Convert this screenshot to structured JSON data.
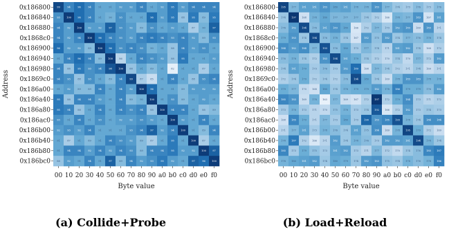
{
  "chart_data": [
    {
      "type": "heatmap",
      "caption": "(a) Collide+Probe",
      "xlabel": "Byte value",
      "ylabel": "Address",
      "x_tick_labels": [
        "00",
        "10",
        "20",
        "30",
        "40",
        "50",
        "60",
        "70",
        "80",
        "90",
        "a0",
        "b0",
        "c0",
        "d0",
        "e0",
        "f0"
      ],
      "y_tick_labels": [
        "0x186800",
        "0x186840",
        "0x186880",
        "0x1868c0",
        "0x186900",
        "0x186940",
        "0x186980",
        "0x1869c0",
        "0x186a00",
        "0x186a40",
        "0x186a80",
        "0x186ac0",
        "0x186b00",
        "0x186b40",
        "0x186b80",
        "0x186bc0"
      ],
      "color_range": [
        80,
        101
      ],
      "values": [
        [
          99,
          94,
          96,
          94,
          91,
          91,
          92,
          92,
          94,
          91,
          92,
          95,
          92,
          94,
          94,
          94
        ],
        [
          93,
          100,
          96,
          94,
          91,
          90,
          93,
          91,
          91,
          96,
          92,
          95,
          88,
          95,
          89,
          95
        ],
        [
          94,
          92,
          100,
          92,
          92,
          97,
          93,
          92,
          89,
          93,
          91,
          92,
          91,
          87,
          90,
          97
        ],
        [
          94,
          92,
          94,
          100,
          96,
          94,
          93,
          92,
          94,
          95,
          94,
          93,
          94,
          92,
          89,
          93
        ],
        [
          96,
          92,
          92,
          89,
          100,
          96,
          93,
          94,
          93,
          90,
          91,
          88,
          94,
          92,
          93,
          91
        ],
        [
          91,
          94,
          96,
          94,
          89,
          100,
          86,
          91,
          94,
          93,
          92,
          88,
          95,
          91,
          91,
          92
        ],
        [
          94,
          88,
          95,
          93,
          94,
          98,
          100,
          88,
          91,
          89,
          91,
          82,
          91,
          91,
          87,
          91
        ],
        [
          94,
          93,
          88,
          93,
          91,
          89,
          94,
          99,
          87,
          85,
          91,
          94,
          91,
          88,
          93,
          94
        ],
        [
          91,
          92,
          89,
          89,
          94,
          91,
          94,
          92,
          100,
          96,
          91,
          91,
          89,
          92,
          92,
          92
        ],
        [
          95,
          88,
          94,
          94,
          92,
          91,
          94,
          89,
          90,
          100,
          91,
          93,
          89,
          91,
          92,
          91
        ],
        [
          95,
          94,
          88,
          91,
          94,
          91,
          94,
          93,
          94,
          88,
          100,
          94,
          94,
          91,
          88,
          89
        ],
        [
          93,
          91,
          94,
          91,
          93,
          91,
          92,
          92,
          93,
          92,
          91,
          100,
          92,
          91,
          94,
          91
        ],
        [
          92,
          93,
          92,
          94,
          91,
          91,
          91,
          93,
          94,
          97,
          92,
          94,
          100,
          91,
          89,
          94
        ],
        [
          91,
          87,
          91,
          89,
          91,
          94,
          93,
          92,
          89,
          87,
          91,
          95,
          91,
          100,
          87,
          91
        ],
        [
          91,
          94,
          94,
          92,
          94,
          92,
          94,
          93,
          89,
          94,
          94,
          95,
          92,
          92,
          100,
          97
        ],
        [
          88,
          92,
          91,
          94,
          91,
          97,
          89,
          94,
          92,
          93,
          95,
          92,
          91,
          97,
          96,
          100
        ]
      ]
    },
    {
      "type": "heatmap",
      "caption": "(b) Load+Reload",
      "xlabel": "Byte value",
      "ylabel": "Address",
      "x_tick_labels": [
        "00",
        "10",
        "20",
        "30",
        "40",
        "50",
        "60",
        "70",
        "80",
        "90",
        "a0",
        "b0",
        "c0",
        "d0",
        "e0",
        "f0"
      ],
      "y_tick_labels": [
        "0x186800",
        "0x186840",
        "0x186880",
        "0x1868c0",
        "0x186900",
        "0x186940",
        "0x186980",
        "0x1869c0",
        "0x186a00",
        "0x186a40",
        "0x186a80",
        "0x186ac0",
        "0x186b00",
        "0x186b40",
        "0x186b80",
        "0x186bc0"
      ],
      "color_range": [
        160,
        198
      ],
      "values": [
        [
          195,
          177,
          181,
          181,
          183,
          180,
          181,
          178,
          178,
          183,
          177,
          174,
          173,
          176,
          173,
          176
        ],
        [
          174,
          197,
          168,
          178,
          180,
          177,
          177,
          177,
          174,
          172,
          166,
          178,
          177,
          183,
          167,
          181
        ],
        [
          176,
          182,
          194,
          176,
          181,
          183,
          180,
          166,
          172,
          177,
          173,
          182,
          183,
          169,
          183,
          171
        ],
        [
          179,
          183,
          174,
          194,
          176,
          178,
          174,
          167,
          182,
          175,
          182,
          174,
          177,
          176,
          178,
          174
        ],
        [
          184,
          182,
          184,
          177,
          193,
          176,
          180,
          173,
          177,
          174,
          171,
          181,
          182,
          174,
          168,
          172
        ],
        [
          176,
          178,
          174,
          172,
          183,
          194,
          181,
          179,
          174,
          172,
          170,
          174,
          170,
          177,
          172,
          182
        ],
        [
          174,
          181,
          179,
          173,
          176,
          173,
          182,
          189,
          168,
          177,
          174,
          172,
          171,
          174,
          169,
          171
        ],
        [
          172,
          174,
          179,
          172,
          174,
          172,
          176,
          194,
          180,
          174,
          169,
          178,
          183,
          183,
          178,
          178
        ],
        [
          179,
          177,
          170,
          168,
          180,
          174,
          178,
          179,
          179,
          182,
          178,
          186,
          179,
          179,
          176,
          182
        ],
        [
          185,
          183,
          169,
          178,
          163,
          177,
          169,
          167,
          172,
          197,
          172,
          179,
          184,
          173,
          171,
          172
        ],
        [
          173,
          178,
          173,
          171,
          170,
          175,
          178,
          173,
          174,
          192,
          166,
          172,
          182,
          173,
          174,
          173
        ],
        [
          168,
          185,
          179,
          171,
          177,
          173,
          180,
          173,
          190,
          183,
          185,
          193,
          178,
          174,
          184,
          184
        ],
        [
          171,
          177,
          181,
          173,
          178,
          176,
          174,
          181,
          175,
          184,
          169,
          178,
          195,
          179,
          172,
          169
        ],
        [
          178,
          187,
          172,
          166,
          171,
          182,
          174,
          178,
          176,
          173,
          182,
          182,
          181,
          194,
          178,
          174
        ],
        [
          185,
          173,
          179,
          175,
          173,
          181,
          182,
          173,
          171,
          177,
          172,
          170,
          174,
          176,
          185,
          187
        ],
        [
          178,
          180,
          181,
          182,
          174,
          180,
          179,
          174,
          182,
          183,
          175,
          174,
          178,
          176,
          178,
          186
        ]
      ]
    }
  ]
}
